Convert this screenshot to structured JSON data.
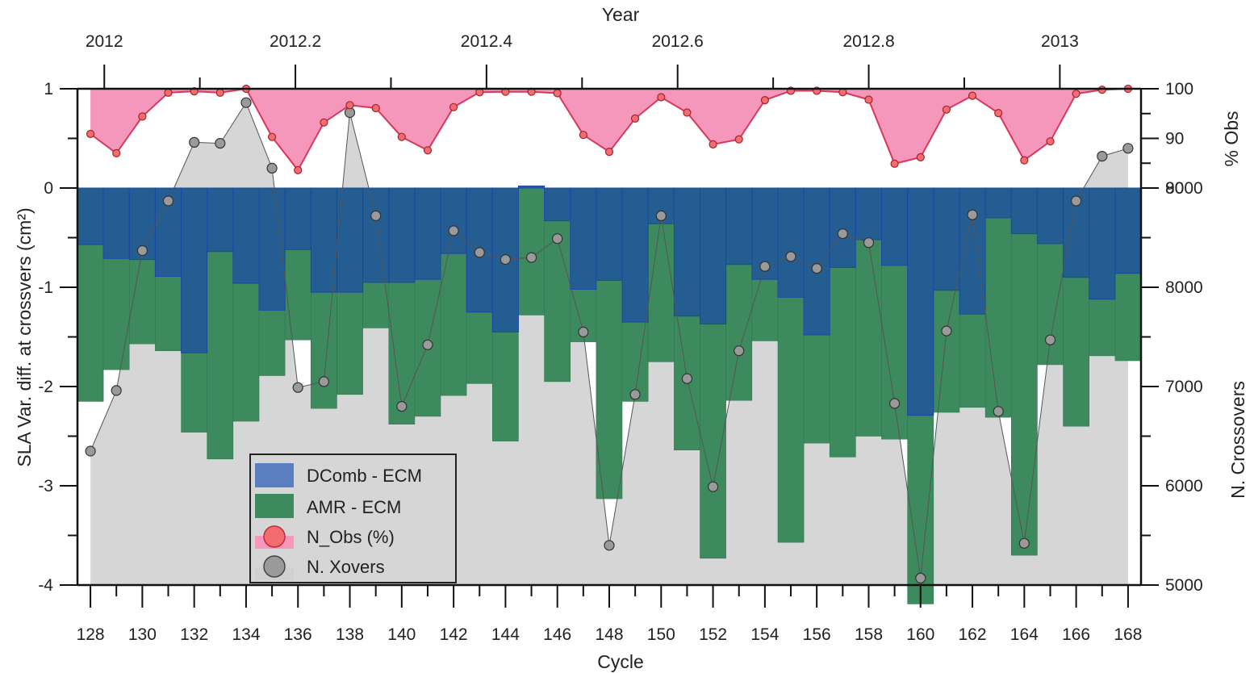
{
  "chart_data": {
    "type": "bar",
    "xlabel": "Cycle",
    "ylabel": "SLA Var. diff. at crossvers (cm²)",
    "top_axis": {
      "label": "Year",
      "ticks": [
        "2012",
        "2012.2",
        "2012.4",
        "2012.6",
        "2012.8",
        "2013"
      ],
      "tick_values": [
        2012.0,
        2012.2,
        2012.4,
        2012.6,
        2012.8,
        2013.0
      ]
    },
    "right_top_axis": {
      "label": "% Obs",
      "ticks": [
        "80",
        "90",
        "100"
      ],
      "range": [
        80,
        100
      ]
    },
    "right_bottom_axis": {
      "label": "N. Crossovers",
      "ticks": [
        "5000",
        "6000",
        "7000",
        "8000",
        "9000"
      ],
      "range": [
        5000,
        10000
      ]
    },
    "left_axis": {
      "ticks": [
        "-4",
        "-3",
        "-2",
        "-1",
        "0",
        "1"
      ],
      "range": [
        -4,
        1
      ]
    },
    "x_ticks": [
      "128",
      "130",
      "132",
      "134",
      "136",
      "138",
      "140",
      "142",
      "144",
      "146",
      "148",
      "150",
      "152",
      "154",
      "156",
      "158",
      "160",
      "162",
      "164",
      "166",
      "168"
    ],
    "x_range": [
      127.5,
      168.5
    ],
    "categories": [
      128,
      129,
      130,
      131,
      132,
      133,
      134,
      135,
      136,
      137,
      138,
      139,
      140,
      141,
      142,
      143,
      144,
      145,
      146,
      147,
      148,
      149,
      150,
      151,
      152,
      153,
      154,
      155,
      156,
      157,
      158,
      159,
      160,
      161,
      162,
      163,
      164,
      165,
      166,
      167,
      168
    ],
    "series": [
      {
        "name": "DComb - ECM",
        "kind": "bar",
        "color": "#1f5a96",
        "values": [
          -0.57,
          -0.71,
          -0.72,
          -0.89,
          -1.66,
          -0.64,
          -0.96,
          -1.23,
          -0.62,
          -1.05,
          -1.05,
          -0.95,
          -0.95,
          -0.92,
          -0.66,
          -1.25,
          -1.45,
          0.02,
          -0.33,
          -1.02,
          -0.93,
          -1.35,
          -0.36,
          -1.29,
          -1.37,
          -0.77,
          -0.92,
          -1.1,
          -1.48,
          -0.8,
          -0.52,
          -0.78,
          -2.29,
          -1.03,
          -1.27,
          -0.3,
          -0.46,
          -0.56,
          -0.9,
          -1.12,
          -0.86
        ]
      },
      {
        "name": "AMR - ECM",
        "kind": "bar",
        "color": "#2f8a5a",
        "values": [
          -2.15,
          -1.83,
          -1.57,
          -1.64,
          -2.46,
          -2.73,
          -2.35,
          -1.89,
          -1.53,
          -2.22,
          -2.08,
          -1.41,
          -2.38,
          -2.3,
          -2.09,
          -1.97,
          -2.55,
          -1.28,
          -1.95,
          -1.55,
          -3.13,
          -2.15,
          -1.75,
          -2.64,
          -3.73,
          -2.14,
          -1.54,
          -3.57,
          -2.57,
          -2.71,
          -2.5,
          -2.53,
          -4.19,
          -2.26,
          -2.21,
          -2.31,
          -3.7,
          -1.78,
          -2.4,
          -1.69,
          -1.74
        ]
      },
      {
        "name": "N_Obs (%)",
        "kind": "area-line",
        "axis": "right_top",
        "color": "#d9385a",
        "fill": "#f596bb",
        "values": [
          90.9,
          87.0,
          94.4,
          99.2,
          99.5,
          99.2,
          100.0,
          90.3,
          83.6,
          93.2,
          96.7,
          96.1,
          90.3,
          87.6,
          96.3,
          99.3,
          99.4,
          99.4,
          99.1,
          90.7,
          87.3,
          94.0,
          98.3,
          95.2,
          88.8,
          89.8,
          97.7,
          99.6,
          99.6,
          99.3,
          97.8,
          84.9,
          86.2,
          95.8,
          98.6,
          95.1,
          85.6,
          89.4,
          99.0,
          99.8,
          100.0
        ]
      },
      {
        "name": "N. Xovers",
        "kind": "area-line",
        "axis": "right_bottom",
        "color": "#8a8a8a",
        "fill": "#d6d6d6",
        "values": [
          6350,
          6960,
          8370,
          8870,
          9460,
          9450,
          9860,
          9200,
          6990,
          7050,
          9760,
          8720,
          6800,
          7420,
          8570,
          8350,
          8280,
          8300,
          8490,
          7550,
          5400,
          6920,
          8720,
          7080,
          5990,
          7360,
          8210,
          8310,
          8190,
          8540,
          8450,
          6830,
          5070,
          7560,
          8730,
          6750,
          5420,
          7470,
          8870,
          9320,
          9400
        ]
      }
    ],
    "legend_position": "lower-left",
    "grid": false
  }
}
